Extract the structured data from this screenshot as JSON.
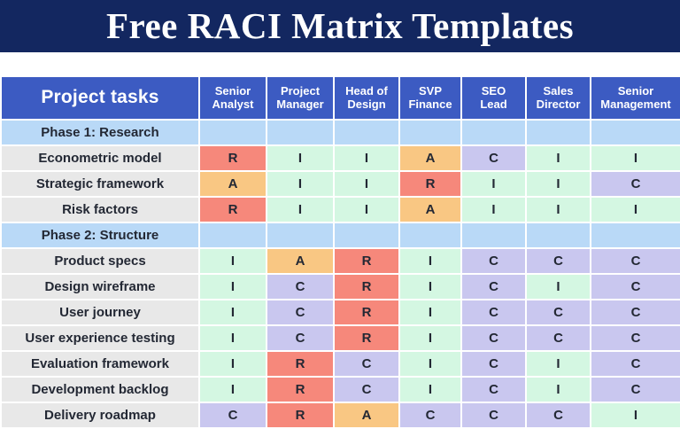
{
  "title": "Free RACI Matrix Templates",
  "colors": {
    "R": "#f6887b",
    "A": "#f9c783",
    "C": "#c9c7ef",
    "I": "#d4f7e2",
    "phase_bg": "#b9d9f7",
    "task_bg": "#e8e8e8",
    "header_bg": "#3c5bc2",
    "banner_bg": "#132760",
    "text_dark": "#232834"
  },
  "chart_data": {
    "type": "table",
    "title": "Free RACI Matrix Templates",
    "columns": [
      "Project tasks",
      "Senior\nAnalyst",
      "Project\nManager",
      "Head of\nDesign",
      "SVP\nFinance",
      "SEO\nLead",
      "Sales\nDirector",
      "Senior\nManagement"
    ],
    "rows": [
      [
        "Phase 1: Research",
        "",
        "",
        "",
        "",
        "",
        "",
        ""
      ],
      [
        "Econometric model",
        "R",
        "I",
        "I",
        "A",
        "C",
        "I",
        "I"
      ],
      [
        "Strategic framework",
        "A",
        "I",
        "I",
        "R",
        "I",
        "I",
        "C"
      ],
      [
        "Risk factors",
        "R",
        "I",
        "I",
        "A",
        "I",
        "I",
        "I"
      ],
      [
        "Phase 2: Structure",
        "",
        "",
        "",
        "",
        "",
        "",
        ""
      ],
      [
        "Product specs",
        "I",
        "A",
        "R",
        "I",
        "C",
        "C",
        "C"
      ],
      [
        "Design wireframe",
        "I",
        "C",
        "R",
        "I",
        "C",
        "I",
        "C"
      ],
      [
        "User journey",
        "I",
        "C",
        "R",
        "I",
        "C",
        "C",
        "C"
      ],
      [
        "User experience testing",
        "I",
        "C",
        "R",
        "I",
        "C",
        "C",
        "C"
      ],
      [
        "Evaluation framework",
        "I",
        "R",
        "C",
        "I",
        "C",
        "I",
        "C"
      ],
      [
        "Development backlog",
        "I",
        "R",
        "C",
        "I",
        "C",
        "I",
        "C"
      ],
      [
        "Delivery roadmap",
        "C",
        "R",
        "A",
        "C",
        "C",
        "C",
        "I"
      ]
    ]
  }
}
